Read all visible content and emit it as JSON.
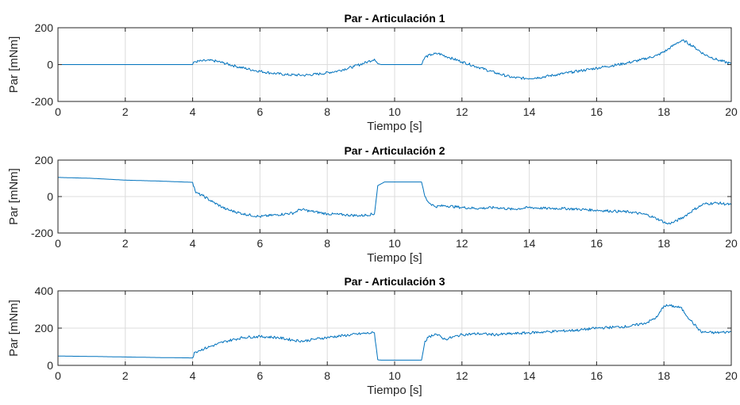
{
  "chart_data": [
    {
      "type": "line",
      "title": "Par - Articulación 1",
      "xlabel": "Tiempo [s]",
      "ylabel": "Par [mNm]",
      "xlim": [
        0,
        20
      ],
      "ylim": [
        -200,
        200
      ],
      "xticks": [
        "0",
        "2",
        "4",
        "6",
        "8",
        "10",
        "12",
        "14",
        "16",
        "18",
        "20"
      ],
      "yticks": [
        "200",
        "0",
        "-200"
      ],
      "grid": true,
      "color": "#0072BD",
      "series": [
        {
          "x": [
            0,
            4,
            4.05,
            4.3,
            4.6,
            4.9,
            5.3,
            5.8,
            6.3,
            6.8,
            7.3,
            7.8,
            8.3,
            8.8,
            9.2,
            9.4,
            9.5,
            9.6,
            10.8,
            10.9,
            11.1,
            11.3,
            11.6,
            12.0,
            12.5,
            13.0,
            13.5,
            13.9,
            14.3,
            14.8,
            15.3,
            15.8,
            16.3,
            16.8,
            17.3,
            17.8,
            18.1,
            18.4,
            18.6,
            18.9,
            19.2,
            19.6,
            20.0
          ],
          "y": [
            0,
            0,
            15,
            20,
            22,
            10,
            -10,
            -30,
            -45,
            -55,
            -58,
            -50,
            -35,
            -10,
            15,
            30,
            5,
            0,
            0,
            40,
            55,
            60,
            40,
            15,
            -15,
            -45,
            -70,
            -75,
            -70,
            -55,
            -40,
            -25,
            -10,
            5,
            25,
            50,
            80,
            120,
            130,
            95,
            55,
            25,
            5
          ]
        }
      ]
    },
    {
      "type": "line",
      "title": "Par - Articulación 2",
      "xlabel": "Tiempo [s]",
      "ylabel": "Par [mNm]",
      "xlim": [
        0,
        20
      ],
      "ylim": [
        -200,
        200
      ],
      "xticks": [
        "0",
        "2",
        "4",
        "6",
        "8",
        "10",
        "12",
        "14",
        "16",
        "18",
        "20"
      ],
      "yticks": [
        "200",
        "0",
        "-200"
      ],
      "grid": true,
      "color": "#0072BD",
      "series": [
        {
          "x": [
            0,
            1,
            2,
            3,
            4,
            4.1,
            4.3,
            4.6,
            5.0,
            5.5,
            6.0,
            6.5,
            7.0,
            7.2,
            7.5,
            8.0,
            8.5,
            9.0,
            9.4,
            9.5,
            9.7,
            10.8,
            10.9,
            11.0,
            11.2,
            11.5,
            12.0,
            12.5,
            13.0,
            13.5,
            14.0,
            14.5,
            15.0,
            15.5,
            16.0,
            16.5,
            17.0,
            17.5,
            17.9,
            18.1,
            18.3,
            18.6,
            18.9,
            19.2,
            19.6,
            20.0
          ],
          "y": [
            105,
            100,
            90,
            85,
            78,
            20,
            5,
            -30,
            -70,
            -95,
            -110,
            -100,
            -90,
            -70,
            -80,
            -95,
            -100,
            -105,
            -95,
            60,
            80,
            80,
            0,
            -30,
            -55,
            -50,
            -60,
            -65,
            -60,
            -70,
            -60,
            -65,
            -65,
            -70,
            -75,
            -80,
            -85,
            -100,
            -130,
            -150,
            -140,
            -110,
            -70,
            -40,
            -35,
            -45
          ]
        }
      ]
    },
    {
      "type": "line",
      "title": "Par - Articulación 3",
      "xlabel": "Tiempo [s]",
      "ylabel": "Par [mNm]",
      "xlim": [
        0,
        20
      ],
      "ylim": [
        0,
        400
      ],
      "xticks": [
        "0",
        "2",
        "4",
        "6",
        "8",
        "10",
        "12",
        "14",
        "16",
        "18",
        "20"
      ],
      "yticks": [
        "400",
        "200",
        "0"
      ],
      "grid": true,
      "color": "#0072BD",
      "series": [
        {
          "x": [
            0,
            1,
            2,
            3,
            4,
            4.05,
            4.2,
            4.5,
            5.0,
            5.5,
            6.0,
            6.5,
            7.0,
            7.3,
            7.6,
            8.0,
            8.5,
            9.0,
            9.4,
            9.5,
            9.6,
            10.8,
            10.9,
            11.0,
            11.2,
            11.5,
            12.0,
            12.5,
            13.0,
            13.5,
            14.0,
            14.5,
            15.0,
            15.5,
            16.0,
            16.5,
            17.0,
            17.5,
            17.8,
            18.0,
            18.2,
            18.5,
            18.8,
            19.1,
            19.5,
            20.0
          ],
          "y": [
            50,
            48,
            45,
            42,
            40,
            70,
            80,
            100,
            130,
            150,
            155,
            150,
            135,
            130,
            140,
            150,
            160,
            170,
            175,
            30,
            28,
            28,
            130,
            150,
            170,
            140,
            165,
            170,
            165,
            170,
            175,
            180,
            185,
            190,
            200,
            205,
            210,
            230,
            260,
            320,
            320,
            310,
            240,
            180,
            175,
            180
          ]
        }
      ]
    }
  ]
}
